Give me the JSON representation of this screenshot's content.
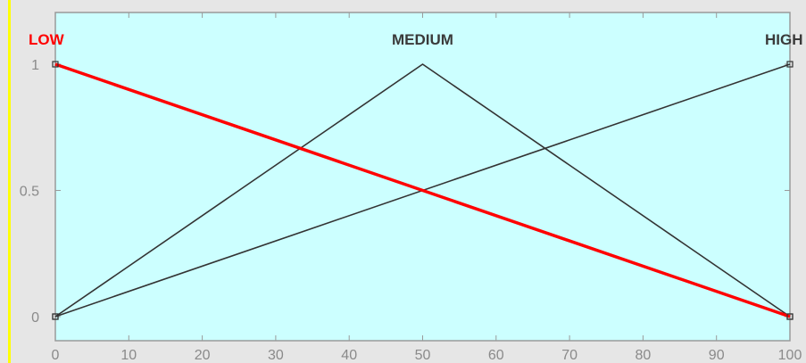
{
  "chart_data": {
    "type": "line",
    "title": "",
    "xlabel": "",
    "ylabel": "",
    "xlim": [
      0,
      100
    ],
    "ylim": [
      0,
      1
    ],
    "xticks": [
      "0",
      "10",
      "20",
      "30",
      "40",
      "50",
      "60",
      "70",
      "80",
      "90",
      "100"
    ],
    "yticks": [
      "0",
      "0.5",
      "1"
    ],
    "grid": false,
    "background_color": "#ccffff",
    "series": [
      {
        "name": "LOW",
        "x": [
          0,
          100
        ],
        "y": [
          1,
          0
        ],
        "color": "#ff0000",
        "highlighted": true
      },
      {
        "name": "MEDIUM",
        "x": [
          0,
          50,
          100
        ],
        "y": [
          0,
          1,
          0
        ],
        "color": "#333333",
        "highlighted": false
      },
      {
        "name": "HIGH",
        "x": [
          0,
          100
        ],
        "y": [
          0,
          1
        ],
        "color": "#333333",
        "highlighted": false
      }
    ]
  },
  "colors": {
    "accent_left_bar": "#ffff00",
    "frame": "#9a9a9a",
    "tick_label": "#8a8a8a",
    "label_default": "#3a3a3a"
  }
}
